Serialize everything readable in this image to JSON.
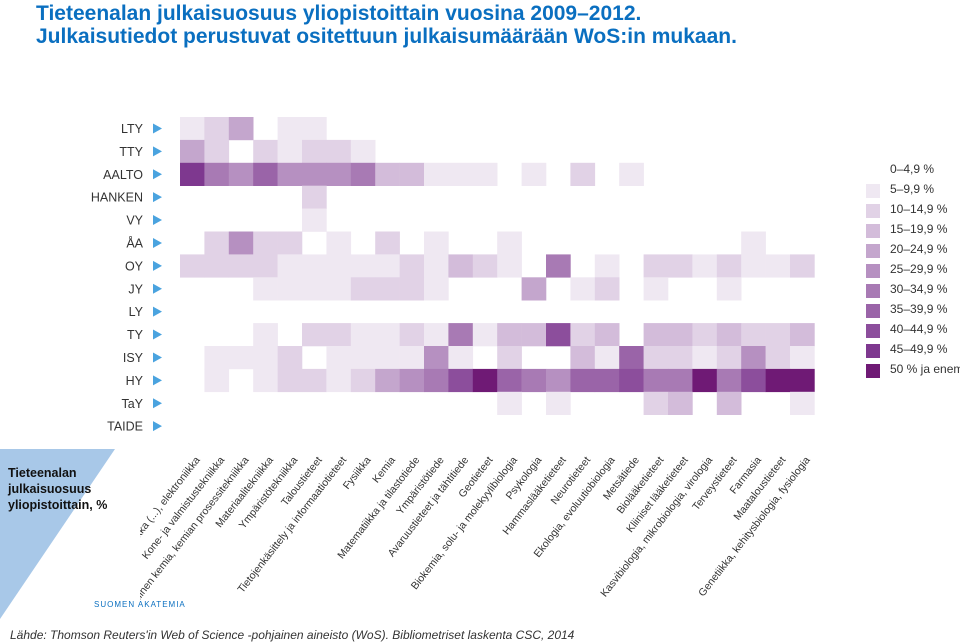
{
  "title": {
    "line1": "Tieteenalan julkaisuosuus yliopistoittain vuosina 2009–2012.",
    "line2": "Julkaisutiedot perustuvat ositettuun julkaisumäärään WoS:in mukaan."
  },
  "colors": {
    "title": "#0a6fc0",
    "arrow": "#4aa3df",
    "side_panel": "#a8c8e8",
    "scale": [
      "#ffffff",
      "#efe8f2",
      "#e1d2e6",
      "#d3bcda",
      "#c4a6cd",
      "#b690c1",
      "#a87ab4",
      "#9a64a8",
      "#8c4e9c",
      "#7e388f",
      "#6f1a75"
    ]
  },
  "side_label": "Tieteenalan julkaisuosuus yliopistoittain, %",
  "source_text": "Lähde: Thomson Reuters'in Web of Science -pohjainen aineisto (WoS). Bibliometriset laskenta CSC, 2014",
  "brand_text": "SUOMEN AKATEMIA",
  "chart_data": {
    "type": "heatmap",
    "rows": [
      "LTY",
      "TTY",
      "AALTO",
      "HANKEN",
      "VY",
      "ÅA",
      "OY",
      "JY",
      "LY",
      "TY",
      "ISY",
      "HY",
      "TaY",
      "TAIDE"
    ],
    "columns": [
      "Sähkötekniikka (...), elektroniikka",
      "Kone- ja valmistustekniikka",
      "Teknillinen kemia, kemian prosessitekniikka",
      "Materiaalitekniikka",
      "Ympäristötekniikka",
      "Taloustieteet",
      "Tietojenkäsittely ja informaatiotieteet",
      "Fysiikka",
      "Kemia",
      "Matematiikka ja tilastotiede",
      "Ympäristötiede",
      "Avaruustieteet ja tähtitiede",
      "Geotieteet",
      "Biokemia, solu- ja molekyylibiologia",
      "Psykologia",
      "Hammaslääketieteet",
      "Neurotieteet",
      "Ekologia, evoluutiobiologia",
      "Metsätiede",
      "Biolääketieteet",
      "Kliiniset lääketieteet",
      "Kasvibiologia, mikrobiologia, virologia",
      "Terveystieteet",
      "Farmasia",
      "Maataloustieteet",
      "Genetiikka, kehitysbiologia, fysiologia"
    ],
    "legend": [
      "0–4,9 %",
      "5–9,9 %",
      "10–14,9 %",
      "15–19,9 %",
      "20–24,9 %",
      "25–29,9 %",
      "30–34,9 %",
      "35–39,9 %",
      "40–44,9 %",
      "45–49,9 %",
      "50 % ja enem"
    ],
    "legend_placement": "right",
    "values": [
      [
        1,
        2,
        4,
        0,
        1,
        1,
        0,
        0,
        0,
        0,
        0,
        0,
        0,
        0,
        0,
        0,
        0,
        0,
        0,
        0,
        0,
        0,
        0,
        0,
        0,
        0
      ],
      [
        4,
        2,
        0,
        2,
        1,
        2,
        2,
        1,
        0,
        0,
        0,
        0,
        0,
        0,
        0,
        0,
        0,
        0,
        0,
        0,
        0,
        0,
        0,
        0,
        0,
        0
      ],
      [
        9,
        6,
        5,
        7,
        5,
        5,
        5,
        6,
        3,
        3,
        1,
        1,
        1,
        0,
        1,
        0,
        2,
        0,
        1,
        0,
        0,
        0,
        0,
        0,
        0,
        0
      ],
      [
        0,
        0,
        0,
        0,
        0,
        2,
        0,
        0,
        0,
        0,
        0,
        0,
        0,
        0,
        0,
        0,
        0,
        0,
        0,
        0,
        0,
        0,
        0,
        0,
        0,
        0
      ],
      [
        0,
        0,
        0,
        0,
        0,
        1,
        0,
        0,
        0,
        0,
        0,
        0,
        0,
        0,
        0,
        0,
        0,
        0,
        0,
        0,
        0,
        0,
        0,
        0,
        0,
        0
      ],
      [
        0,
        2,
        5,
        2,
        2,
        0,
        1,
        0,
        2,
        0,
        1,
        0,
        0,
        1,
        0,
        0,
        0,
        0,
        0,
        0,
        0,
        0,
        0,
        1,
        0,
        0
      ],
      [
        2,
        2,
        2,
        2,
        1,
        1,
        1,
        1,
        1,
        2,
        1,
        3,
        2,
        1,
        0,
        6,
        0,
        1,
        0,
        2,
        2,
        1,
        2,
        1,
        1,
        2
      ],
      [
        0,
        0,
        0,
        1,
        1,
        1,
        1,
        2,
        2,
        2,
        1,
        0,
        0,
        0,
        4,
        0,
        1,
        2,
        0,
        1,
        0,
        0,
        1,
        0,
        0,
        0
      ],
      [
        0,
        0,
        0,
        0,
        0,
        0,
        0,
        0,
        0,
        0,
        0,
        0,
        0,
        0,
        0,
        0,
        0,
        0,
        0,
        0,
        0,
        0,
        0,
        0,
        0,
        0
      ],
      [
        0,
        0,
        0,
        1,
        0,
        2,
        2,
        1,
        1,
        2,
        1,
        6,
        1,
        3,
        3,
        8,
        2,
        3,
        0,
        3,
        3,
        2,
        3,
        2,
        2,
        3
      ],
      [
        0,
        1,
        1,
        1,
        2,
        0,
        1,
        1,
        1,
        1,
        5,
        1,
        0,
        2,
        0,
        0,
        3,
        1,
        7,
        2,
        2,
        1,
        2,
        5,
        2,
        1
      ],
      [
        0,
        1,
        0,
        1,
        2,
        2,
        1,
        2,
        4,
        5,
        6,
        8,
        10,
        7,
        6,
        5,
        7,
        7,
        8,
        6,
        6,
        10,
        6,
        8,
        10,
        10
      ],
      [
        0,
        0,
        0,
        0,
        0,
        0,
        0,
        0,
        0,
        0,
        0,
        0,
        0,
        1,
        0,
        1,
        0,
        0,
        0,
        2,
        3,
        0,
        3,
        0,
        0,
        1
      ],
      [
        0,
        0,
        0,
        0,
        0,
        0,
        0,
        0,
        0,
        0,
        0,
        0,
        0,
        0,
        0,
        0,
        0,
        0,
        0,
        0,
        0,
        0,
        0,
        0,
        0,
        0
      ]
    ]
  }
}
